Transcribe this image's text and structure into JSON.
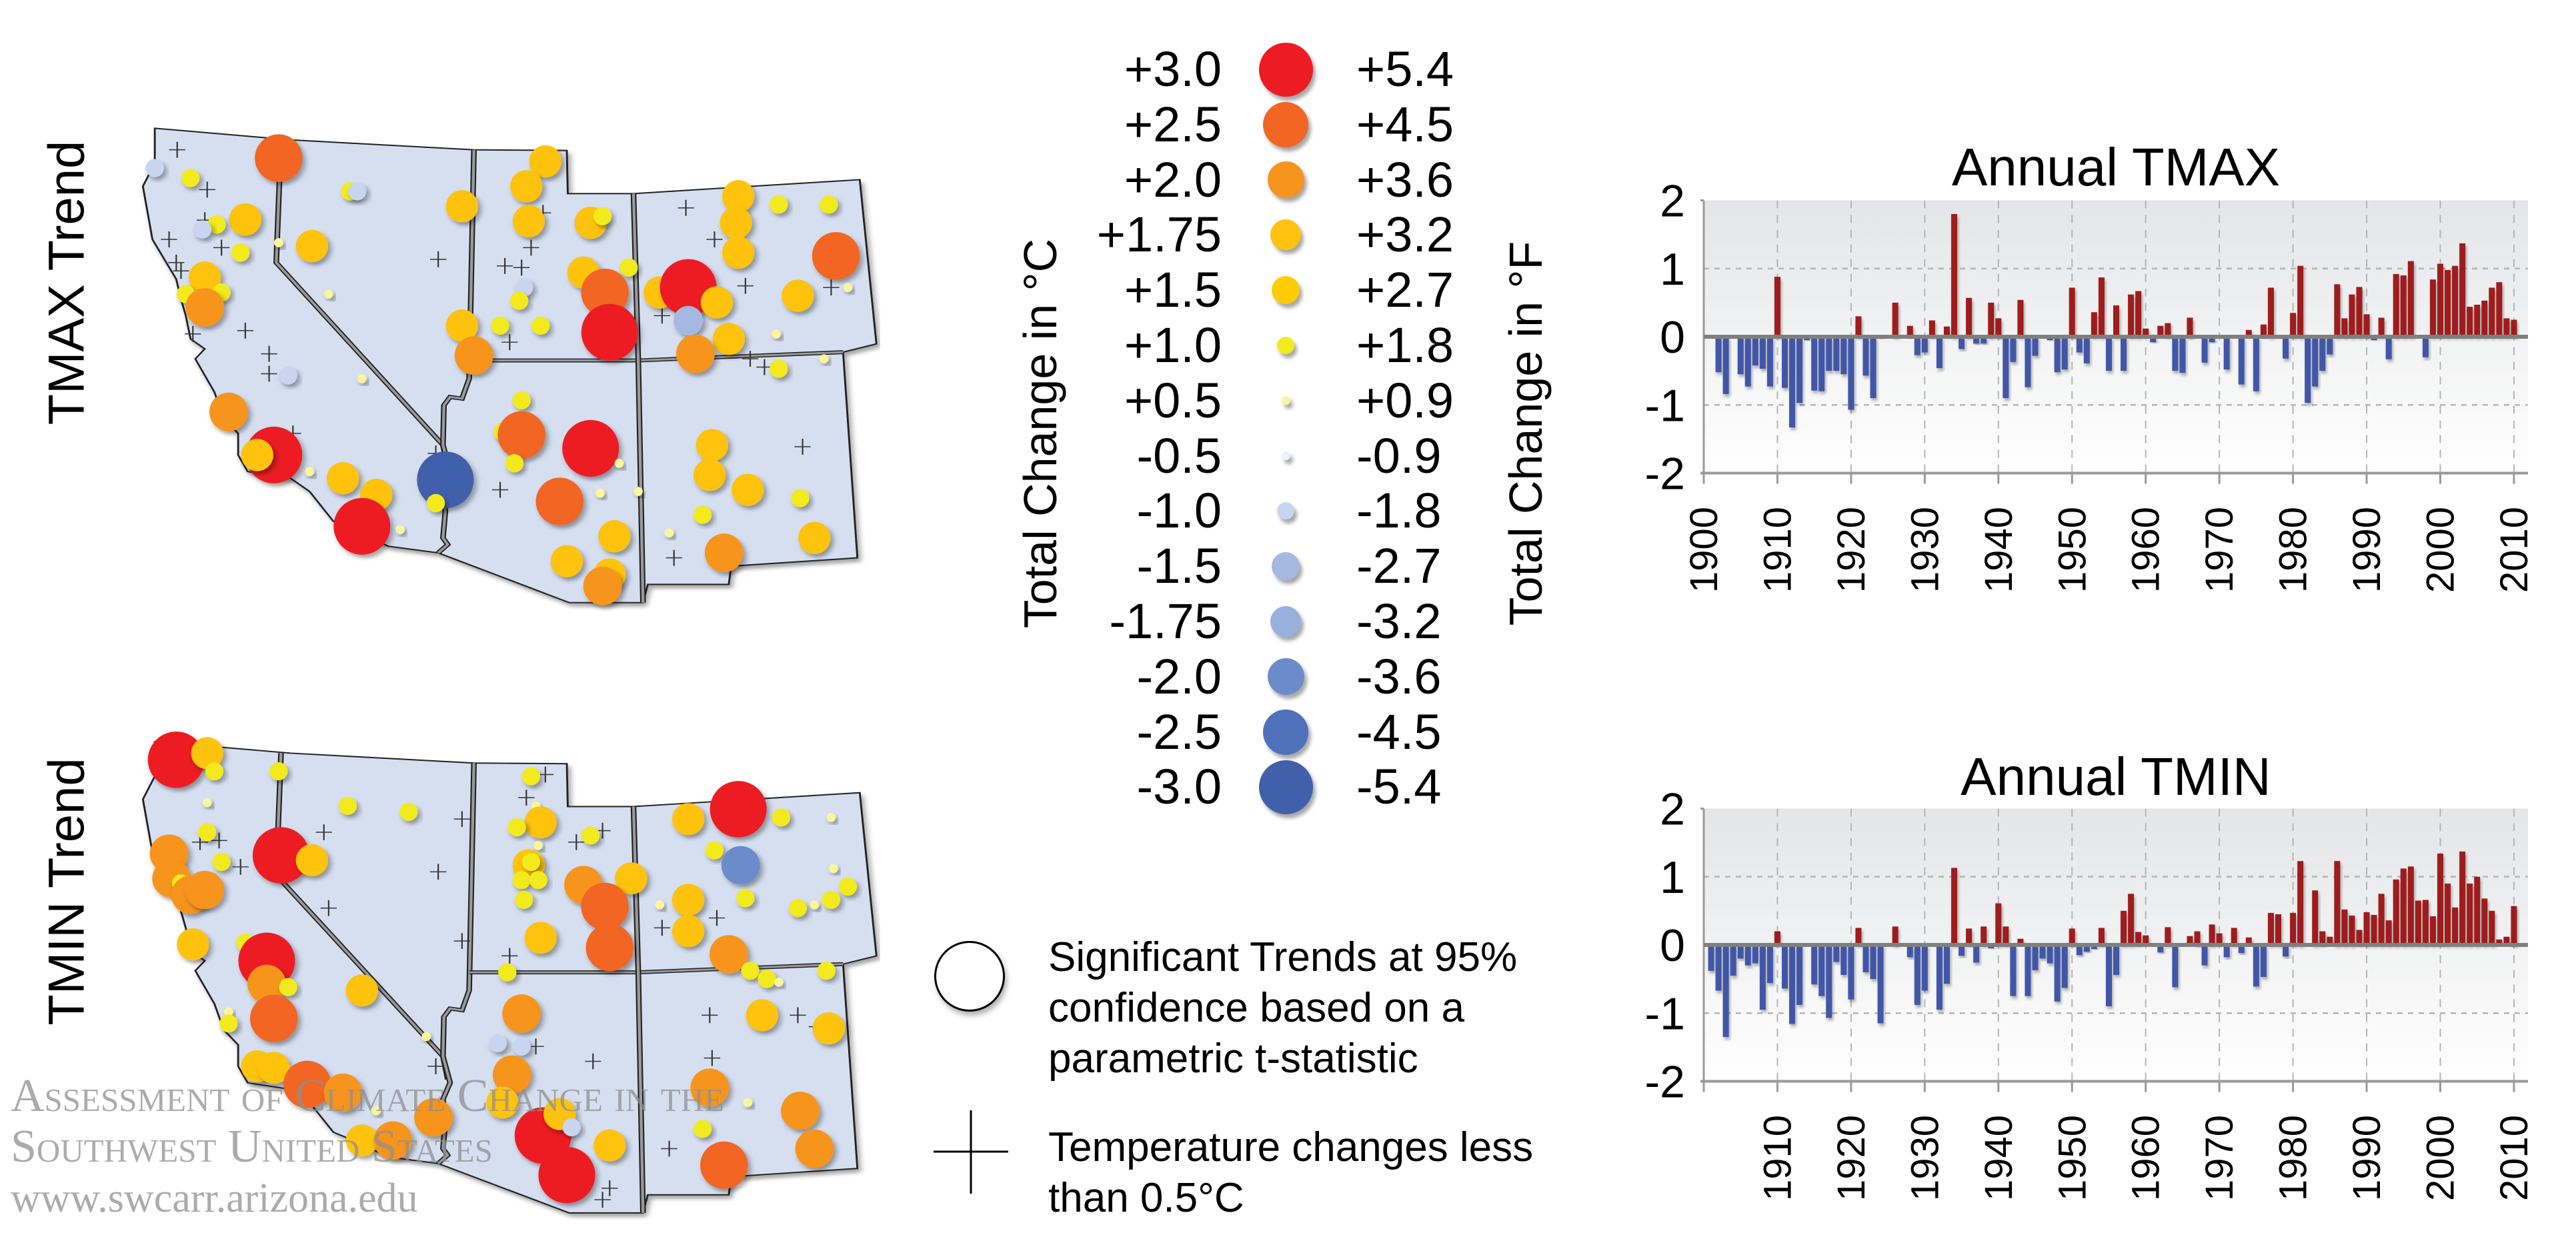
{
  "maps": {
    "tmax_label": "TMAX Trend",
    "tmin_label": "TMIN Trend"
  },
  "legend": {
    "celsius_title": "Total Change in °C",
    "fahrenheit_title": "Total Change in °F",
    "items": [
      {
        "c": "+3.0",
        "f": "+5.4",
        "color": "#ed1c24"
      },
      {
        "c": "+2.5",
        "f": "+4.5",
        "color": "#f26522"
      },
      {
        "c": "+2.0",
        "f": "+3.6",
        "color": "#f7941d"
      },
      {
        "c": "+1.75",
        "f": "+3.2",
        "color": "#ffc20e"
      },
      {
        "c": "+1.5",
        "f": "+2.7",
        "color": "#ffcb05"
      },
      {
        "c": "+1.0",
        "f": "+1.8",
        "color": "#f2ea1c"
      },
      {
        "c": "+0.5",
        "f": "+0.9",
        "color": "#fbf59b"
      },
      {
        "c": "-0.5",
        "f": "-0.9",
        "color": "#eef1f8"
      },
      {
        "c": "-1.0",
        "f": "-1.8",
        "color": "#c7d5ee"
      },
      {
        "c": "-1.5",
        "f": "-2.7",
        "color": "#a5b9e0"
      },
      {
        "c": "-1.75",
        "f": "-3.2",
        "color": "#97b0de"
      },
      {
        "c": "-2.0",
        "f": "-3.6",
        "color": "#6c8bcb"
      },
      {
        "c": "-2.5",
        "f": "-4.5",
        "color": "#4f70bb"
      },
      {
        "c": "-3.0",
        "f": "-5.4",
        "color": "#4160ab"
      }
    ],
    "significant_lines": [
      "Significant Trends at 95%",
      "confidence based on a",
      "parametric t-statistic"
    ],
    "cross_lines": [
      "Temperature changes less",
      "than 0.5°C"
    ]
  },
  "watermark": {
    "title": "Assessment of Climate Change in the Southwest United States",
    "url": "www.swcarr.arizona.edu"
  },
  "colors": {
    "positive": "#9e1b1e",
    "negative": "#3f56a8",
    "map_fill": "#d5dff0"
  },
  "chart_data": [
    {
      "type": "bar",
      "title": "Annual TMAX",
      "xlabel": "",
      "ylabel": "",
      "ylim": [
        -2,
        2
      ],
      "yticks": [
        "2",
        "1",
        "0",
        "-1",
        "-2"
      ],
      "xticks": [
        "1900",
        "1910",
        "1920",
        "1930",
        "1940",
        "1950",
        "1960",
        "1970",
        "1980",
        "1990",
        "2000",
        "2010"
      ],
      "grid": true,
      "x": [
        1902,
        1903,
        1905,
        1906,
        1907,
        1908,
        1909,
        1910,
        1911,
        1912,
        1913,
        1914,
        1915,
        1916,
        1917,
        1918,
        1919,
        1920,
        1921,
        1922,
        1923,
        1924,
        1926,
        1928,
        1929,
        1930,
        1931,
        1932,
        1933,
        1934,
        1935,
        1936,
        1937,
        1938,
        1939,
        1940,
        1941,
        1942,
        1943,
        1944,
        1945,
        1947,
        1948,
        1949,
        1950,
        1951,
        1952,
        1953,
        1954,
        1955,
        1956,
        1957,
        1958,
        1959,
        1960,
        1961,
        1962,
        1963,
        1964,
        1965,
        1966,
        1968,
        1969,
        1971,
        1973,
        1974,
        1975,
        1976,
        1977,
        1978,
        1979,
        1980,
        1981,
        1982,
        1983,
        1984,
        1985,
        1986,
        1987,
        1988,
        1989,
        1990,
        1991,
        1992,
        1993,
        1994,
        1995,
        1996,
        1998,
        1999,
        2000,
        2001,
        2002,
        2003,
        2004,
        2005,
        2006,
        2007,
        2008,
        2009,
        2010
      ],
      "values": [
        -0.52,
        -0.84,
        -0.55,
        -0.73,
        -0.42,
        -0.47,
        -0.73,
        0.88,
        -0.75,
        -1.33,
        -0.97,
        -0.05,
        -0.79,
        -0.8,
        -0.5,
        -0.5,
        -0.55,
        -1.07,
        0.3,
        -0.57,
        -0.9,
        -0.03,
        0.5,
        0.16,
        -0.27,
        -0.23,
        0.24,
        -0.46,
        0.15,
        1.8,
        -0.18,
        0.57,
        -0.1,
        -0.1,
        0.5,
        0.27,
        -0.9,
        -0.37,
        0.54,
        -0.74,
        -0.28,
        -0.05,
        -0.52,
        -0.48,
        0.72,
        -0.23,
        -0.39,
        0.36,
        0.87,
        -0.5,
        0.46,
        -0.5,
        0.62,
        0.67,
        0.12,
        -0.08,
        0.16,
        0.2,
        -0.5,
        -0.53,
        0.28,
        -0.38,
        -0.08,
        -0.48,
        -0.7,
        0.1,
        -0.8,
        0.18,
        0.72,
        -0.03,
        -0.32,
        0.35,
        1.04,
        -0.97,
        -0.73,
        -0.5,
        -0.26,
        0.77,
        0.27,
        0.62,
        0.73,
        0.33,
        -0.05,
        0.28,
        -0.33,
        0.92,
        0.9,
        1.11,
        -0.3,
        0.84,
        1.07,
        0.98,
        1.04,
        1.37,
        0.44,
        0.47,
        0.53,
        0.72,
        0.8,
        0.27,
        0.25
      ]
    },
    {
      "type": "bar",
      "title": "Annual TMIN",
      "xlabel": "",
      "ylabel": "",
      "ylim": [
        -2,
        2
      ],
      "yticks": [
        "2",
        "1",
        "0",
        "-1",
        "-2"
      ],
      "xticks": [
        "1910",
        "1920",
        "1930",
        "1940",
        "1950",
        "1960",
        "1970",
        "1980",
        "1990",
        "2000",
        "2010"
      ],
      "grid": true,
      "x": [
        1901,
        1902,
        1903,
        1904,
        1905,
        1906,
        1907,
        1908,
        1909,
        1910,
        1911,
        1912,
        1913,
        1915,
        1916,
        1917,
        1918,
        1919,
        1920,
        1921,
        1922,
        1923,
        1924,
        1926,
        1928,
        1929,
        1930,
        1932,
        1933,
        1934,
        1935,
        1936,
        1937,
        1938,
        1939,
        1940,
        1941,
        1942,
        1943,
        1944,
        1945,
        1946,
        1947,
        1948,
        1949,
        1950,
        1951,
        1952,
        1953,
        1954,
        1955,
        1956,
        1957,
        1958,
        1959,
        1960,
        1962,
        1963,
        1964,
        1966,
        1967,
        1968,
        1969,
        1970,
        1971,
        1972,
        1973,
        1974,
        1975,
        1976,
        1977,
        1978,
        1979,
        1980,
        1981,
        1983,
        1984,
        1985,
        1986,
        1987,
        1988,
        1989,
        1990,
        1991,
        1992,
        1993,
        1994,
        1995,
        1996,
        1997,
        1998,
        1999,
        2000,
        2001,
        2002,
        2003,
        2004,
        2005,
        2006,
        2007,
        2008,
        2009,
        2010
      ],
      "values": [
        -0.38,
        -0.67,
        -1.35,
        -0.45,
        -0.2,
        -0.3,
        -0.27,
        -0.95,
        -0.56,
        0.2,
        -0.64,
        -1.16,
        -0.88,
        -0.58,
        -0.75,
        -1.07,
        -0.25,
        -0.44,
        -0.8,
        0.25,
        -0.4,
        -0.5,
        -1.15,
        0.27,
        -0.18,
        -0.88,
        -0.67,
        -0.95,
        -0.57,
        1.13,
        -0.16,
        0.24,
        -0.26,
        0.27,
        -0.05,
        0.61,
        0.27,
        -0.75,
        0.09,
        -0.75,
        -0.37,
        -0.2,
        -0.27,
        -0.83,
        -0.63,
        0.24,
        -0.15,
        -0.1,
        -0.06,
        0.25,
        -0.9,
        -0.44,
        0.5,
        0.75,
        0.19,
        0.14,
        -0.11,
        0.26,
        -0.62,
        0.13,
        0.2,
        -0.3,
        0.3,
        0.17,
        -0.18,
        0.25,
        -0.12,
        0.11,
        -0.61,
        -0.47,
        0.47,
        0.45,
        -0.17,
        0.47,
        1.23,
        0.8,
        0.2,
        0.12,
        1.23,
        0.52,
        0.43,
        0.22,
        0.48,
        0.44,
        0.75,
        0.36,
        0.96,
        1.12,
        1.15,
        0.65,
        0.66,
        0.42,
        1.34,
        0.9,
        0.55,
        1.37,
        0.9,
        1.0,
        0.68,
        0.5,
        0.08,
        0.12,
        0.57
      ]
    }
  ]
}
